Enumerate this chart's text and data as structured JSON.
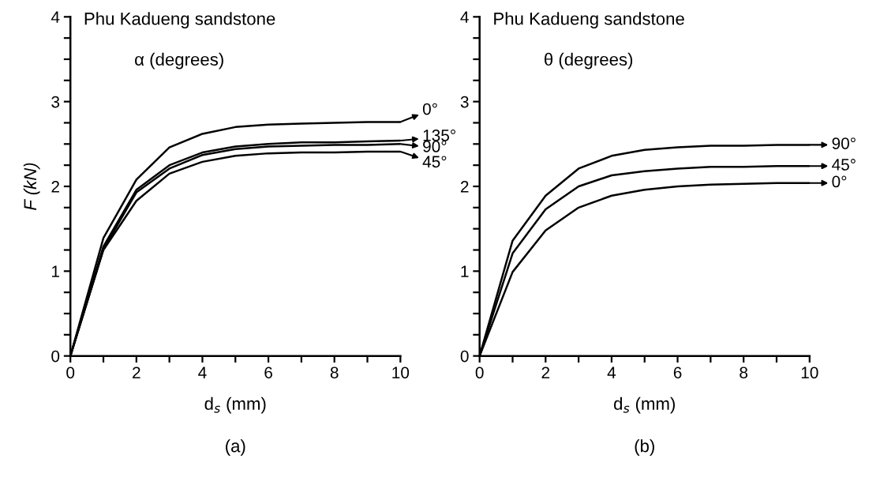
{
  "chart_data": [
    {
      "type": "line",
      "title": "Phu Kadueng sandstone",
      "legend_title": "α (degrees)",
      "xlabel": "d$_{s}$ (mm)",
      "ylabel": "F (kN)",
      "annotations": [
        "(a)"
      ],
      "x": [
        0,
        1,
        2,
        3,
        4,
        5,
        6,
        7,
        8,
        9,
        10
      ],
      "series": [
        {
          "name": "0°",
          "color": "#000000",
          "values": [
            0,
            1.39,
            2.08,
            2.46,
            2.62,
            2.7,
            2.73,
            2.74,
            2.75,
            2.76,
            2.76
          ]
        },
        {
          "name": "135°",
          "color": "#000000",
          "values": [
            0,
            1.29,
            1.96,
            2.25,
            2.4,
            2.47,
            2.5,
            2.52,
            2.52,
            2.53,
            2.54
          ]
        },
        {
          "name": "90°",
          "color": "#000000",
          "values": [
            0,
            1.26,
            1.93,
            2.21,
            2.37,
            2.44,
            2.47,
            2.48,
            2.49,
            2.49,
            2.5
          ]
        },
        {
          "name": "45°",
          "color": "#000000",
          "values": [
            0,
            1.25,
            1.83,
            2.15,
            2.29,
            2.36,
            2.39,
            2.4,
            2.4,
            2.41,
            2.41
          ]
        }
      ],
      "xlim": [
        0,
        10
      ],
      "ylim": [
        0,
        4
      ],
      "xticks": [
        0,
        {
          "value": 1,
          "label": null
        },
        2,
        {
          "value": 3,
          "label": null
        },
        4,
        {
          "value": 5,
          "label": null
        },
        6,
        {
          "value": 7,
          "label": null
        },
        8,
        {
          "value": 9,
          "label": null
        },
        10
      ],
      "yticks": [
        0,
        {
          "value": 0.25,
          "label": null
        },
        {
          "value": 0.5,
          "label": null
        },
        {
          "value": 0.75,
          "label": null
        },
        1,
        {
          "value": 1.25,
          "label": null
        },
        {
          "value": 1.5,
          "label": null
        },
        {
          "value": 1.75,
          "label": null
        },
        2,
        {
          "value": 2.25,
          "label": null
        },
        {
          "value": 2.5,
          "label": null
        },
        {
          "value": 2.75,
          "label": null
        },
        3,
        {
          "value": 3.25,
          "label": null
        },
        {
          "value": 3.5,
          "label": null
        },
        {
          "value": 3.75,
          "label": null
        },
        4
      ],
      "grid": false,
      "legend": "right",
      "marker": "none",
      "line_style": "solid"
    },
    {
      "type": "line",
      "title": "Phu Kadueng sandstone",
      "legend_title": "θ (degrees)",
      "xlabel": "d$_{s}$ (mm)",
      "annotations": [
        "(b)"
      ],
      "x": [
        0,
        1,
        2,
        3,
        4,
        5,
        6,
        7,
        8,
        9,
        10
      ],
      "series": [
        {
          "name": "90°",
          "color": "#000000",
          "values": [
            0,
            1.36,
            1.89,
            2.21,
            2.36,
            2.43,
            2.46,
            2.48,
            2.48,
            2.49,
            2.49
          ]
        },
        {
          "name": "45°",
          "color": "#000000",
          "values": [
            0,
            1.21,
            1.73,
            2.0,
            2.13,
            2.18,
            2.21,
            2.23,
            2.23,
            2.24,
            2.24
          ]
        },
        {
          "name": "0°",
          "color": "#000000",
          "values": [
            0,
            0.99,
            1.48,
            1.75,
            1.89,
            1.96,
            2.0,
            2.02,
            2.03,
            2.04,
            2.04
          ]
        }
      ],
      "xlim": [
        0,
        10
      ],
      "ylim": [
        0,
        4
      ],
      "xticks": [
        0,
        {
          "value": 1,
          "label": null
        },
        2,
        {
          "value": 3,
          "label": null
        },
        4,
        {
          "value": 5,
          "label": null
        },
        6,
        {
          "value": 7,
          "label": null
        },
        8,
        {
          "value": 9,
          "label": null
        },
        10
      ],
      "yticks": [
        0,
        {
          "value": 0.25,
          "label": null
        },
        {
          "value": 0.5,
          "label": null
        },
        {
          "value": 0.75,
          "label": null
        },
        1,
        {
          "value": 1.25,
          "label": null
        },
        {
          "value": 1.5,
          "label": null
        },
        {
          "value": 1.75,
          "label": null
        },
        2,
        {
          "value": 2.25,
          "label": null
        },
        {
          "value": 2.5,
          "label": null
        },
        {
          "value": 2.75,
          "label": null
        },
        3,
        {
          "value": 3.25,
          "label": null
        },
        {
          "value": 3.5,
          "label": null
        },
        {
          "value": 3.75,
          "label": null
        },
        4
      ],
      "grid": false,
      "legend": "right",
      "marker": "none",
      "line_style": "solid"
    }
  ]
}
